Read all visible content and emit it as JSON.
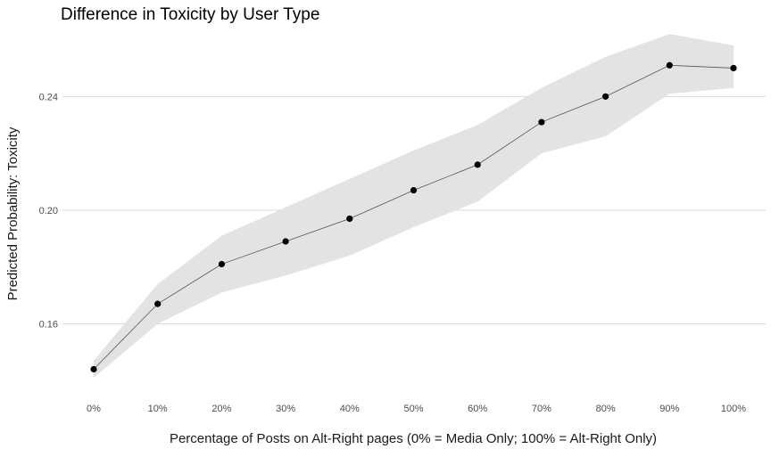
{
  "chart_data": {
    "type": "line",
    "title": "Difference in Toxicity by User Type",
    "xlabel": "Percentage of Posts on Alt-Right pages (0% = Media Only; 100% = Alt-Right Only)",
    "ylabel": "Predicted Probability: Toxicity",
    "categories": [
      "0%",
      "10%",
      "20%",
      "30%",
      "40%",
      "50%",
      "60%",
      "70%",
      "80%",
      "90%",
      "100%"
    ],
    "series": [
      {
        "values": [
          0.144,
          0.167,
          0.181,
          0.189,
          0.197,
          0.207,
          0.216,
          0.231,
          0.24,
          0.251,
          0.25
        ],
        "lower": [
          0.141,
          0.16,
          0.171,
          0.177,
          0.184,
          0.194,
          0.203,
          0.22,
          0.226,
          0.241,
          0.243
        ],
        "upper": [
          0.147,
          0.174,
          0.191,
          0.201,
          0.211,
          0.221,
          0.23,
          0.243,
          0.254,
          0.262,
          0.258
        ]
      }
    ],
    "yticks": [
      0.16,
      0.2,
      0.24
    ],
    "ytick_labels": [
      "0.16",
      "0.20",
      "0.24"
    ],
    "ylim": [
      0.136,
      0.263
    ],
    "grid": true,
    "legend": "none",
    "colors": {
      "points": "#000000",
      "line": "#555555",
      "ribbon": "#e3e3e3",
      "grid": "#d9d9d9"
    }
  }
}
